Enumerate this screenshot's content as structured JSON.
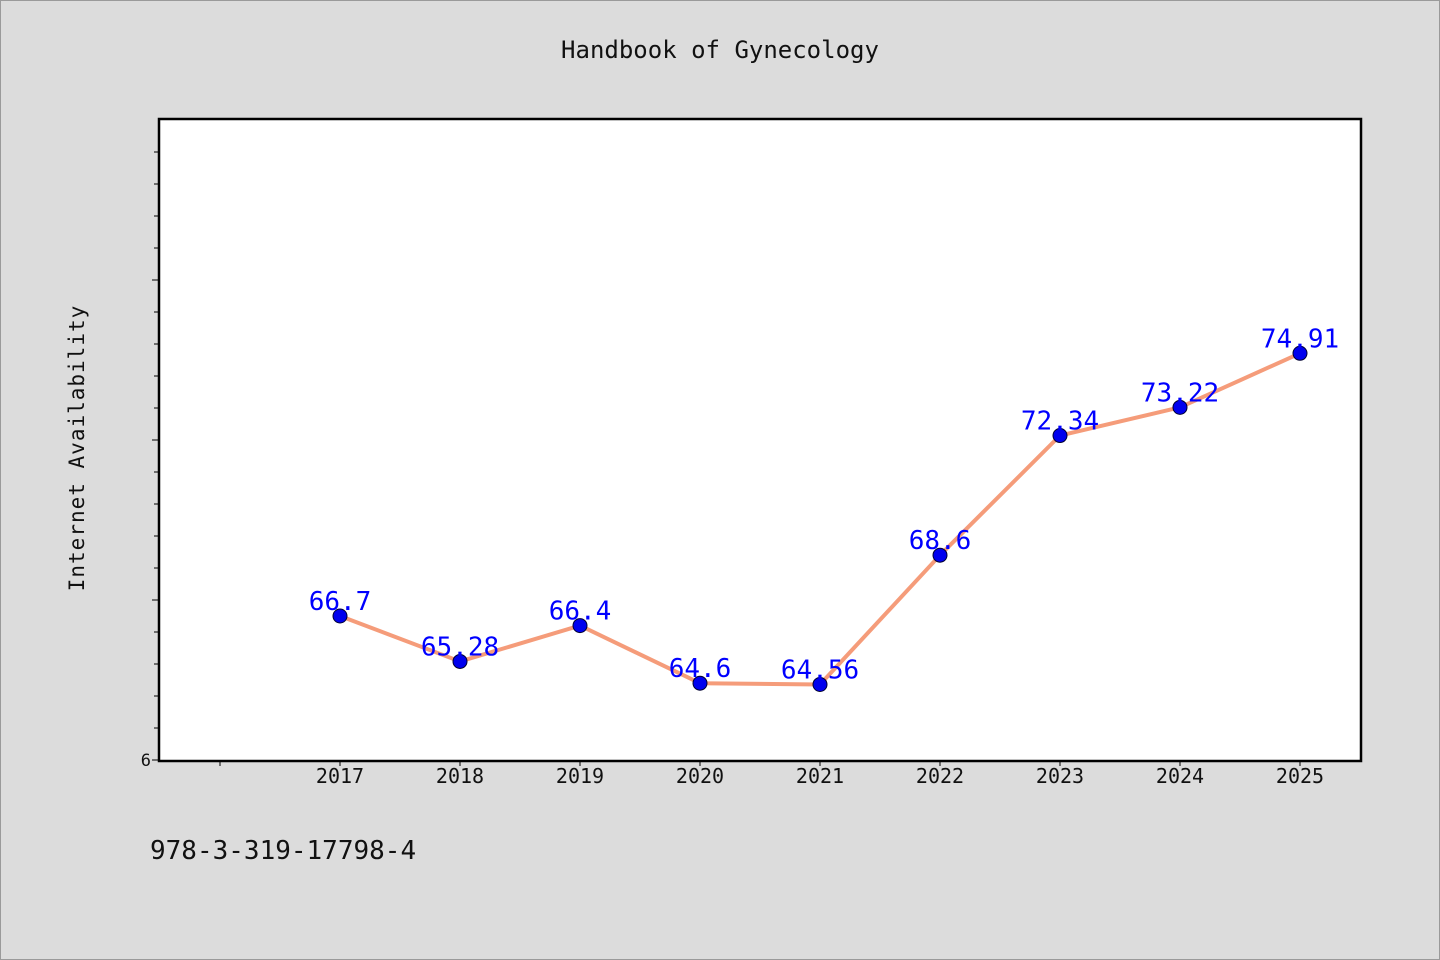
{
  "chart_data": {
    "type": "line",
    "title": "Handbook of Gynecology",
    "xlabel": "",
    "ylabel": "Internet Availability",
    "x": [
      "2017",
      "2018",
      "2019",
      "2020",
      "2021",
      "2022",
      "2023",
      "2024",
      "2025"
    ],
    "series": [
      {
        "values": [
          66.7,
          65.28,
          66.4,
          64.6,
          64.56,
          68.6,
          72.34,
          73.22,
          74.91
        ],
        "labels": [
          "66.7",
          "65.28",
          "66.4",
          "64.6",
          "64.56",
          "68.6",
          "72.34",
          "73.22",
          "74.91"
        ],
        "line_color": "#f59c7a",
        "marker_color": "#0000ee",
        "label_color": "#0000ff"
      }
    ],
    "ylim": [
      62.2,
      82.2
    ],
    "y_tick_labels": [
      "6"
    ],
    "grid": false,
    "legend": "none"
  },
  "footnote": "978-3-319-17798-4"
}
